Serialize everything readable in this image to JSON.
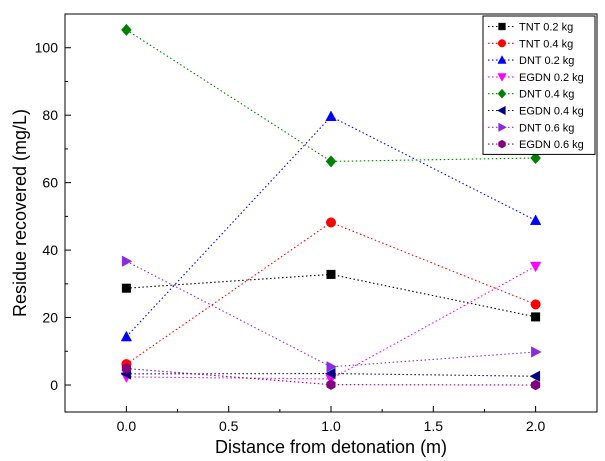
{
  "chart_data": {
    "type": "line",
    "xlabel": "Distance from detonation (m)",
    "ylabel": "Residue recovered (mg/L)",
    "xlim": [
      -0.3,
      2.3
    ],
    "ylim": [
      -8,
      110
    ],
    "x_ticks": [
      0.0,
      0.5,
      1.0,
      1.5,
      2.0
    ],
    "x_tick_labels": [
      "0.0",
      "0.5",
      "1.0",
      "1.5",
      "2.0"
    ],
    "y_ticks": [
      0,
      20,
      40,
      60,
      80,
      100
    ],
    "y_tick_labels": [
      "0",
      "20",
      "40",
      "60",
      "80",
      "100"
    ],
    "grid": false,
    "legend_position": "top-right",
    "line_style": "dotted",
    "x": [
      0.0,
      1.0,
      2.0
    ],
    "series": [
      {
        "name": "TNT 0.2 kg",
        "color": "#000000",
        "marker": "square",
        "values": [
          28.7,
          32.8,
          20.2
        ]
      },
      {
        "name": "TNT 0.4 kg",
        "color": "#ff0000",
        "marker": "circle",
        "values": [
          6.2,
          48.2,
          23.9
        ]
      },
      {
        "name": "DNT 0.2 kg",
        "color": "#0000ff",
        "marker": "triangle-up",
        "values": [
          14.3,
          79.6,
          48.8
        ]
      },
      {
        "name": "EGDN 0.2 kg",
        "color": "#ff00ff",
        "marker": "triangle-down",
        "values": [
          2.4,
          1.8,
          35.2
        ]
      },
      {
        "name": "DNT 0.4 kg",
        "color": "#008000",
        "marker": "diamond",
        "values": [
          105.3,
          66.3,
          67.3
        ]
      },
      {
        "name": "EGDN 0.4 kg",
        "color": "#000080",
        "marker": "triangle-left",
        "values": [
          3.3,
          3.4,
          2.6
        ]
      },
      {
        "name": "DNT 0.6 kg",
        "color": "#8a2be2",
        "marker": "triangle-right",
        "values": [
          36.7,
          5.4,
          9.8
        ]
      },
      {
        "name": "EGDN 0.6 kg",
        "color": "#800080",
        "marker": "hexagon",
        "values": [
          4.9,
          0.1,
          0.0
        ]
      }
    ]
  }
}
